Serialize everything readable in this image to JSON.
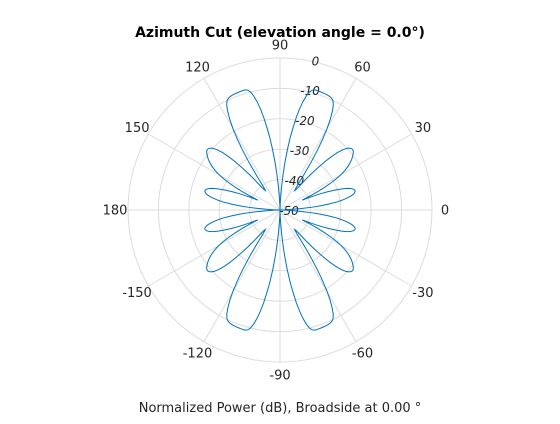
{
  "chart_data": {
    "type": "polar-line",
    "title": "Azimuth Cut (elevation angle = 0.0°)",
    "xlabel": "Normalized Power (dB), Broadside at 0.00 °",
    "angle_unit": "degrees",
    "angle_ticks": [
      0,
      30,
      60,
      90,
      120,
      150,
      180,
      -150,
      -120,
      -90,
      -60,
      -30
    ],
    "radial_ticks": [
      0,
      -10,
      -20,
      -30,
      -40,
      -50
    ],
    "radial_range": [
      -50,
      0
    ],
    "grid": true,
    "series": [
      {
        "color": "#0072BD",
        "angles": [
          0,
          1,
          2,
          3,
          4,
          5,
          6,
          7,
          8,
          9,
          10,
          11,
          12,
          13,
          14,
          15,
          16,
          17,
          18,
          19,
          20,
          21,
          22,
          23,
          24,
          25,
          26,
          27,
          28,
          29,
          30,
          31,
          32,
          33,
          34,
          35,
          36,
          37,
          38,
          39,
          40,
          41,
          42,
          43,
          44,
          45,
          46,
          47,
          48,
          49,
          50,
          51,
          52,
          53,
          54,
          55,
          56,
          57,
          58,
          59,
          60,
          61,
          62,
          63,
          64,
          65,
          66,
          67,
          68,
          69,
          70,
          71,
          72,
          73,
          74,
          75,
          76,
          77,
          78,
          79,
          80,
          81,
          82,
          83,
          84,
          85,
          86,
          87,
          88,
          89,
          90
        ],
        "values": [
          -50,
          -49.4,
          -47.8,
          -45.6,
          -42.6,
          -39.4,
          -36.3,
          -33.6,
          -31.2,
          -29.3,
          -27.7,
          -26.4,
          -25.4,
          -24.8,
          -24.5,
          -24.6,
          -25,
          -25.8,
          -27,
          -28.8,
          -31,
          -33.4,
          -36,
          -39,
          -42,
          -39,
          -36,
          -33.4,
          -31,
          -28.8,
          -27,
          -25.5,
          -24.2,
          -23.1,
          -22.2,
          -21.3,
          -20.6,
          -20,
          -19.4,
          -19,
          -18.9,
          -19.1,
          -19.6,
          -20.4,
          -21.6,
          -23.3,
          -25.5,
          -28,
          -31,
          -34,
          -37,
          -40,
          -41.6,
          -42,
          -41.2,
          -39.5,
          -35.6,
          -31,
          -26.6,
          -22.6,
          -19,
          -15.9,
          -13.4,
          -11.4,
          -10.2,
          -9.6,
          -9.3,
          -9.15,
          -9.05,
          -9,
          -8.95,
          -8.9,
          -8.87,
          -8.85,
          -8.9,
          -9.2,
          -10,
          -11.5,
          -13.5,
          -16,
          -19,
          -22.5,
          -26,
          -30,
          -34,
          -38,
          -42,
          -45.5,
          -48,
          -49.5,
          -50
        ]
      }
    ]
  }
}
